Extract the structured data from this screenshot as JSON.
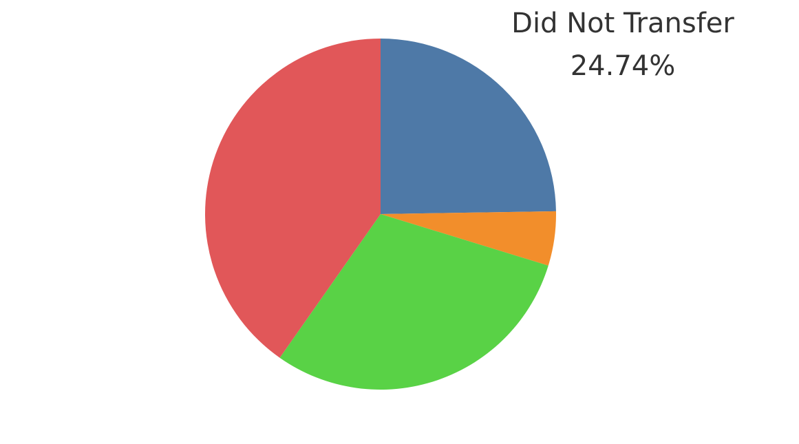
{
  "chart_data": {
    "type": "pie",
    "categories": [
      "Did Not Transfer",
      null,
      null,
      null
    ],
    "values": [
      24.74,
      5,
      30,
      40.26
    ],
    "value_labels": [
      "24.74%",
      null,
      null,
      null
    ],
    "colors": [
      "#4e79a7",
      "#f28e2b",
      "#59d246",
      "#e15759"
    ]
  }
}
